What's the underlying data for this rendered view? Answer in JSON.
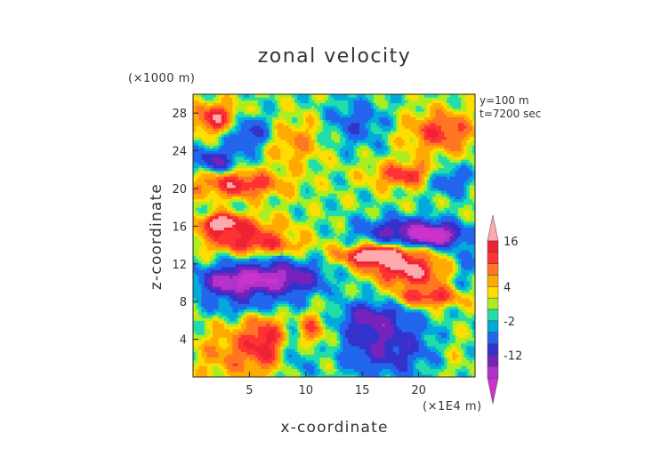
{
  "chart_data": {
    "type": "heatmap",
    "title": "zonal velocity",
    "xlabel": "x-coordinate",
    "ylabel": "z-coordinate",
    "x_unit": "(×1E4 m)",
    "y_unit": "(×1000 m)",
    "annotations": [
      "y=100 m",
      "t=7200 sec"
    ],
    "xlim": [
      0,
      25
    ],
    "ylim": [
      0,
      30
    ],
    "x_ticks": [
      5,
      10,
      15,
      20
    ],
    "y_ticks": [
      4,
      8,
      12,
      16,
      20,
      24,
      28
    ],
    "x_tick_labels": [
      "5",
      "10",
      "15",
      "20"
    ],
    "y_tick_labels": [
      "4",
      "8",
      "12",
      "16",
      "20",
      "24",
      "28"
    ],
    "colorbar": {
      "min": -22,
      "max": 22,
      "tick_values": [
        16,
        4,
        -2,
        -12
      ],
      "tick_labels": [
        "16",
        "4",
        "-2",
        "-12"
      ],
      "levels": [
        {
          "value": -20,
          "color": "#cc33cc"
        },
        {
          "value": -16,
          "color": "#b233cc"
        },
        {
          "value": -12,
          "color": "#7722bb"
        },
        {
          "value": -8,
          "color": "#3333cc"
        },
        {
          "value": -4,
          "color": "#2266ee"
        },
        {
          "value": -2,
          "color": "#00aadd"
        },
        {
          "value": 0,
          "color": "#22ddaa"
        },
        {
          "value": 2,
          "color": "#aaee22"
        },
        {
          "value": 4,
          "color": "#ffdd00"
        },
        {
          "value": 7,
          "color": "#ffaa00"
        },
        {
          "value": 10,
          "color": "#ff7722"
        },
        {
          "value": 13,
          "color": "#ff3333"
        },
        {
          "value": 16,
          "color": "#ee2233"
        },
        {
          "value": 20,
          "color": "#ffaaaa"
        }
      ]
    },
    "features": [
      {
        "x": 19.5,
        "z": 11,
        "sx": 3.0,
        "sz": 1.6,
        "v": 14
      },
      {
        "x": 17,
        "z": 12.5,
        "sx": 3.5,
        "sz": 1.5,
        "v": 11
      },
      {
        "x": 16,
        "z": 13,
        "sx": 2.5,
        "sz": 0.8,
        "v": 16
      },
      {
        "x": 21,
        "z": 8.5,
        "sx": 3,
        "sz": 1.0,
        "v": 13
      },
      {
        "x": 7,
        "z": 10.5,
        "sx": 4.5,
        "sz": 1.8,
        "v": -19
      },
      {
        "x": 3,
        "z": 10,
        "sx": 2.5,
        "sz": 1.4,
        "v": -12
      },
      {
        "x": 5,
        "z": 7.5,
        "sx": 4,
        "sz": 1.2,
        "v": -6
      },
      {
        "x": 4,
        "z": 15.5,
        "sx": 4,
        "sz": 1.6,
        "v": 12
      },
      {
        "x": 6,
        "z": 14,
        "sx": 4,
        "sz": 1.0,
        "v": 9
      },
      {
        "x": 2.5,
        "z": 16.5,
        "sx": 1.5,
        "sz": 0.8,
        "v": 16
      },
      {
        "x": 19,
        "z": 15.5,
        "sx": 4,
        "sz": 1.4,
        "v": -15
      },
      {
        "x": 21.5,
        "z": 15,
        "sx": 2,
        "sz": 1.0,
        "v": -18
      },
      {
        "x": 17,
        "z": 3.5,
        "sx": 4,
        "sz": 3.5,
        "v": -12
      },
      {
        "x": 15.5,
        "z": 6.5,
        "sx": 2.5,
        "sz": 1.5,
        "v": -9
      },
      {
        "x": 23,
        "z": 2.5,
        "sx": 1.5,
        "sz": 3,
        "v": 2
      },
      {
        "x": 3.5,
        "z": 2.5,
        "sx": 3.5,
        "sz": 3,
        "v": 7
      },
      {
        "x": 6.5,
        "z": 4,
        "sx": 2,
        "sz": 3,
        "v": 12
      },
      {
        "x": 9,
        "z": 3,
        "sx": 1.5,
        "sz": 3,
        "v": -6
      },
      {
        "x": 10.5,
        "z": 5,
        "sx": 1.2,
        "sz": 2,
        "v": 11
      },
      {
        "x": 12.5,
        "z": 7,
        "sx": 0.6,
        "sz": 7,
        "v": 2
      },
      {
        "x": 4,
        "z": 20.5,
        "sx": 4,
        "sz": 1.4,
        "v": 14
      },
      {
        "x": 2,
        "z": 23,
        "sx": 2,
        "sz": 1.3,
        "v": -12
      },
      {
        "x": 2,
        "z": 27.5,
        "sx": 2,
        "sz": 1.6,
        "v": 15
      },
      {
        "x": 5,
        "z": 26,
        "sx": 2,
        "sz": 1.8,
        "v": -10
      },
      {
        "x": 22,
        "z": 26,
        "sx": 3,
        "sz": 2.2,
        "v": 12
      },
      {
        "x": 19,
        "z": 21.5,
        "sx": 3,
        "sz": 1.3,
        "v": 13
      },
      {
        "x": 22.5,
        "z": 21,
        "sx": 2,
        "sz": 1.5,
        "v": -10
      },
      {
        "x": 14.5,
        "z": 27,
        "sx": 2.5,
        "sz": 2.5,
        "v": -7
      },
      {
        "x": 9,
        "z": 25,
        "sx": 2.5,
        "sz": 2.5,
        "v": 7
      },
      {
        "x": 24,
        "z": 12,
        "sx": 1.2,
        "sz": 3,
        "v": -5
      }
    ]
  }
}
